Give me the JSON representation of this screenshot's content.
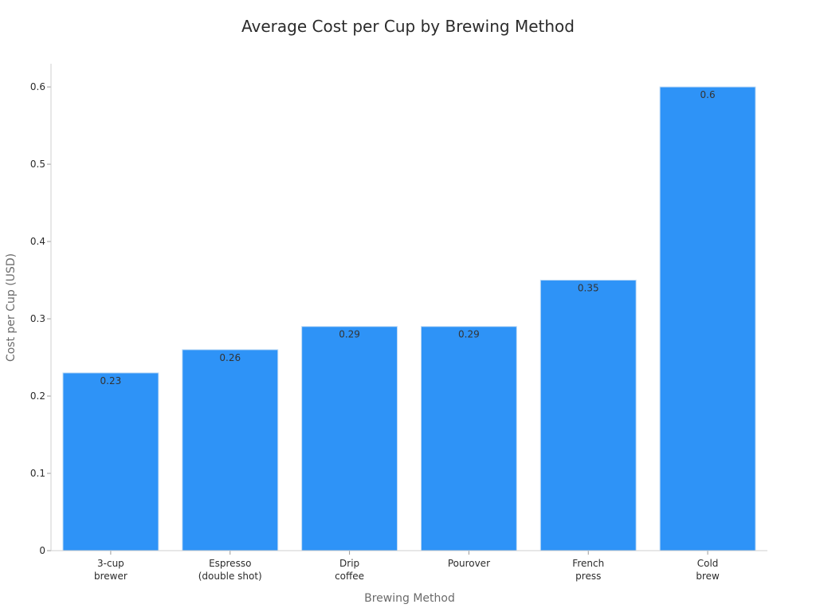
{
  "chart_data": {
    "type": "bar",
    "title": "Average Cost per Cup by Brewing Method",
    "xlabel": "Brewing Method",
    "ylabel": "Cost per Cup (USD)",
    "categories": [
      [
        "3-cup",
        "brewer"
      ],
      [
        "Espresso",
        "(double shot)"
      ],
      [
        "Drip",
        "coffee"
      ],
      [
        "Pourover"
      ],
      [
        "French",
        "press"
      ],
      [
        "Cold",
        "brew"
      ]
    ],
    "values": [
      0.23,
      0.26,
      0.29,
      0.29,
      0.35,
      0.6
    ],
    "data_labels": [
      "0.23",
      "0.26",
      "0.29",
      "0.29",
      "0.35",
      "0.6"
    ],
    "yticks": [
      0,
      0.1,
      0.2,
      0.3,
      0.4,
      0.5,
      0.6
    ],
    "ytick_labels": [
      "0",
      "0.1",
      "0.2",
      "0.3",
      "0.4",
      "0.5",
      "0.6"
    ],
    "ylim": [
      0,
      0.63
    ],
    "bar_color": "#2e93f7",
    "grid": false,
    "legend": "none"
  }
}
